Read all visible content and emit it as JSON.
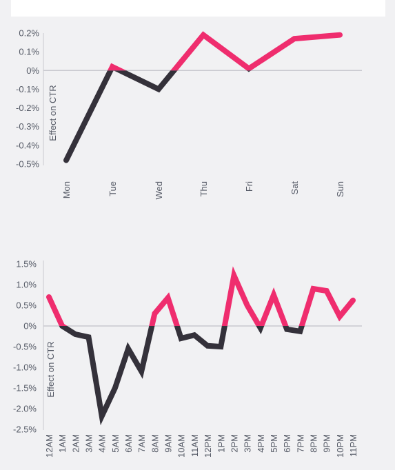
{
  "chart_data": [
    {
      "type": "line",
      "title": "",
      "ylabel": "Effect on CTR",
      "xlabel": "",
      "categories": [
        "Mon",
        "Tue",
        "Wed",
        "Thu",
        "Fri",
        "Sat",
        "Sun"
      ],
      "values": [
        -0.48,
        0.02,
        -0.1,
        0.19,
        0.01,
        0.17,
        0.19
      ],
      "ylim": [
        -0.5,
        0.2
      ],
      "yticks": [
        "0.2%",
        "0.1%",
        "0%",
        "-0.1%",
        "-0.2%",
        "-0.3%",
        "-0.4%",
        "-0.5%"
      ],
      "ytick_values": [
        0.2,
        0.1,
        0,
        -0.1,
        -0.2,
        -0.3,
        -0.4,
        -0.5
      ],
      "grid": false,
      "colors": {
        "positive": "#ef2d6e",
        "negative": "#34313a",
        "zero_line": "#c9c9cf"
      }
    },
    {
      "type": "line",
      "title": "",
      "ylabel": "Effect on CTR",
      "xlabel": "",
      "categories": [
        "12AM",
        "1AM",
        "2AM",
        "3AM",
        "4AM",
        "5AM",
        "6AM",
        "7AM",
        "8AM",
        "9AM",
        "10AM",
        "11AM",
        "12PM",
        "1PM",
        "2PM",
        "3PM",
        "4PM",
        "5PM",
        "6PM",
        "7PM",
        "8PM",
        "9PM",
        "10PM",
        "11PM"
      ],
      "values": [
        0.7,
        0.0,
        -0.2,
        -0.27,
        -2.18,
        -1.5,
        -0.55,
        -1.1,
        0.3,
        0.68,
        -0.3,
        -0.22,
        -0.48,
        -0.5,
        1.22,
        0.5,
        -0.05,
        0.75,
        -0.08,
        -0.13,
        0.9,
        0.85,
        0.23,
        0.62
      ],
      "ylim": [
        -2.5,
        1.5
      ],
      "yticks": [
        "1.5%",
        "1.0%",
        "0.5%",
        "0%",
        "-0.5%",
        "-1.0%",
        "-1.5%",
        "-2.0%",
        "-2.5%"
      ],
      "ytick_values": [
        1.5,
        1.0,
        0.5,
        0,
        -0.5,
        -1.0,
        -1.5,
        -2.0,
        -2.5
      ],
      "grid": false,
      "colors": {
        "positive": "#ef2d6e",
        "negative": "#34313a",
        "zero_line": "#c9c9cf"
      }
    }
  ]
}
